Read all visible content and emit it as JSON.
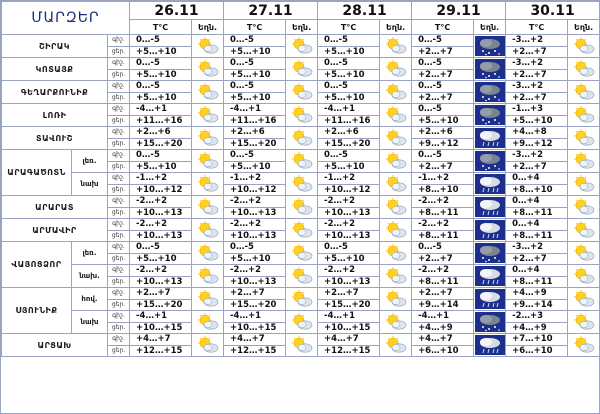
{
  "header": {
    "title": "ՄԱՐԶԵՐ",
    "dates": [
      "26.11",
      "27.11",
      "28.11",
      "29.11",
      "30.11"
    ],
    "temp_label": "T°C",
    "weather_label": "Եղն."
  },
  "labels": {
    "day": "ցերեկը",
    "night": "գիշ."
  },
  "day_labels": [
    "գիշ.",
    "ցեր."
  ],
  "rows": [
    {
      "region": "ՇԻՐԱԿ",
      "sub": "",
      "temps": [
        [
          "0…-5",
          "+5…+10"
        ],
        [
          "0…-5",
          "+5…+10"
        ],
        [
          "0…-5",
          "+5…+10"
        ],
        [
          "0…-5",
          "+2…+7"
        ],
        [
          "-3…+2",
          "+2…+7"
        ]
      ],
      "icons": [
        "sun-cloud",
        "sun-cloud",
        "sun-cloud",
        "snow",
        "sun-cloud"
      ]
    },
    {
      "region": "ԿՈՏԱՅՔ",
      "sub": "",
      "temps": [
        [
          "0…-5",
          "+5…+10"
        ],
        [
          "0…-5",
          "+5…+10"
        ],
        [
          "0…-5",
          "+5…+10"
        ],
        [
          "0…-5",
          "+2…+7"
        ],
        [
          "-3…+2",
          "+2…+7"
        ]
      ],
      "icons": [
        "sun-cloud",
        "sun-cloud",
        "sun-cloud",
        "snow",
        "sun-cloud"
      ]
    },
    {
      "region": "ԳԵՂԱՐՔՈՒՆԻՔ",
      "sub": "",
      "temps": [
        [
          "0…-5",
          "+5…+10"
        ],
        [
          "0…-5",
          "+5…+10"
        ],
        [
          "0…-5",
          "+5…+10"
        ],
        [
          "0…-5",
          "+2…+7"
        ],
        [
          "-3…+2",
          "+2…+7"
        ]
      ],
      "icons": [
        "sun-cloud",
        "sun-cloud",
        "sun-cloud",
        "snow",
        "sun-cloud"
      ]
    },
    {
      "region": "ԼՈՌԻ",
      "sub": "",
      "temps": [
        [
          "-4…+1",
          "+11…+16"
        ],
        [
          "-4…+1",
          "+11…+16"
        ],
        [
          "-4…+1",
          "+11…+16"
        ],
        [
          "0…-5",
          "+5…+10"
        ],
        [
          "-1…+3",
          "+5…+10"
        ]
      ],
      "icons": [
        "sun-cloud",
        "sun-cloud",
        "sun-cloud",
        "snow",
        "sun-cloud"
      ]
    },
    {
      "region": "ՏԱՎՈՒՇ",
      "sub": "",
      "temps": [
        [
          "+2…+6",
          "+15…+20"
        ],
        [
          "+2…+6",
          "+15…+20"
        ],
        [
          "+2…+6",
          "+15…+20"
        ],
        [
          "+2…+6",
          "+9…+12"
        ],
        [
          "+4…+8",
          "+9…+12"
        ]
      ],
      "icons": [
        "sun-cloud",
        "sun-cloud",
        "sun-cloud",
        "rain",
        "sun-cloud"
      ]
    },
    {
      "region": "ԱՐԱԳԱԾՈՏՆ",
      "sub": "լեռ.",
      "temps": [
        [
          "0…-5",
          "+5…+10"
        ],
        [
          "0…-5",
          "+5…+10"
        ],
        [
          "0…-5",
          "+5…+10"
        ],
        [
          "0…-5",
          "+2…+7"
        ],
        [
          "-3…+2",
          "+2…+7"
        ]
      ],
      "icons": [
        "sun-cloud",
        "sun-cloud",
        "sun-cloud",
        "snow",
        "sun-cloud"
      ]
    },
    {
      "region": "",
      "sub": "նախ",
      "temps": [
        [
          "-1…+2",
          "+10…+12"
        ],
        [
          "-1…+2",
          "+10…+12"
        ],
        [
          "-1…+2",
          "+10…+12"
        ],
        [
          "-1…+2",
          "+8…+10"
        ],
        [
          "0…+4",
          "+8…+10"
        ]
      ],
      "icons": [
        "sun-cloud",
        "sun-cloud",
        "sun-cloud",
        "rain",
        "sun-cloud"
      ]
    },
    {
      "region": "ԱՐԱՐԱՏ",
      "sub": "",
      "temps": [
        [
          "-2…+2",
          "+10…+13"
        ],
        [
          "-2…+2",
          "+10…+13"
        ],
        [
          "-2…+2",
          "+10…+13"
        ],
        [
          "-2…+2",
          "+8…+11"
        ],
        [
          "0…+4",
          "+8…+11"
        ]
      ],
      "icons": [
        "sun-cloud",
        "sun-cloud",
        "sun-cloud",
        "rain",
        "sun-cloud"
      ]
    },
    {
      "region": "ԱՐՄԱՎԻՐ",
      "sub": "",
      "temps": [
        [
          "-2…+2",
          "+10…+13"
        ],
        [
          "-2…+2",
          "+10…+13"
        ],
        [
          "-2…+2",
          "+10…+13"
        ],
        [
          "-2…+2",
          "+8…+11"
        ],
        [
          "0…+4",
          "+8…+11"
        ]
      ],
      "icons": [
        "sun-cloud",
        "sun-cloud",
        "sun-cloud",
        "rain",
        "sun-cloud"
      ]
    },
    {
      "region": "ՎԱՅՈՑՁՈՐ",
      "sub": "լեռ.",
      "temps": [
        [
          "0…-5",
          "+5…+10"
        ],
        [
          "0…-5",
          "+5…+10"
        ],
        [
          "0…-5",
          "+5…+10"
        ],
        [
          "0…-5",
          "+2…+7"
        ],
        [
          "-3…+2",
          "+2…+7"
        ]
      ],
      "icons": [
        "sun-cloud",
        "sun-cloud",
        "sun-cloud",
        "snow",
        "sun-cloud"
      ]
    },
    {
      "region": "",
      "sub": "նախ.",
      "temps": [
        [
          "-2…+2",
          "+10…+13"
        ],
        [
          "-2…+2",
          "+10…+13"
        ],
        [
          "-2…+2",
          "+10…+13"
        ],
        [
          "-2…+2",
          "+8…+11"
        ],
        [
          "0…+4",
          "+8…+11"
        ]
      ],
      "icons": [
        "sun-cloud",
        "sun-cloud",
        "sun-cloud",
        "rain",
        "sun-cloud"
      ]
    },
    {
      "region": "ՍՅՈՒՆԻՔ",
      "sub": "հով.",
      "temps": [
        [
          "+2…+7",
          "+15…+20"
        ],
        [
          "+2…+7",
          "+15…+20"
        ],
        [
          "+2…+7",
          "+15…+20"
        ],
        [
          "+2…+7",
          "+9…+14"
        ],
        [
          "+4…+9",
          "+9…+14"
        ]
      ],
      "icons": [
        "sun-cloud",
        "sun-cloud",
        "sun-cloud",
        "rain",
        "sun-cloud"
      ]
    },
    {
      "region": "",
      "sub": "նախ",
      "temps": [
        [
          "-4…+1",
          "+10…+15"
        ],
        [
          "-4…+1",
          "+10…+15"
        ],
        [
          "-4…+1",
          "+10…+15"
        ],
        [
          "-4…+1",
          "+4…+9"
        ],
        [
          "-2…+3",
          "+4…+9"
        ]
      ],
      "icons": [
        "sun-cloud",
        "sun-cloud",
        "sun-cloud",
        "snow",
        "sun-cloud"
      ]
    },
    {
      "region": "ԱՐՑԱԽ",
      "sub": "",
      "temps": [
        [
          "+4…+7",
          "+12…+15"
        ],
        [
          "+4…+7",
          "+12…+15"
        ],
        [
          "+4…+7",
          "+12…+15"
        ],
        [
          "+4…+7",
          "+6…+10"
        ],
        [
          "+7…+10",
          "+6…+10"
        ]
      ],
      "icons": [
        "sun-cloud",
        "sun-cloud",
        "sun-cloud",
        "rain",
        "sun-cloud"
      ]
    }
  ]
}
